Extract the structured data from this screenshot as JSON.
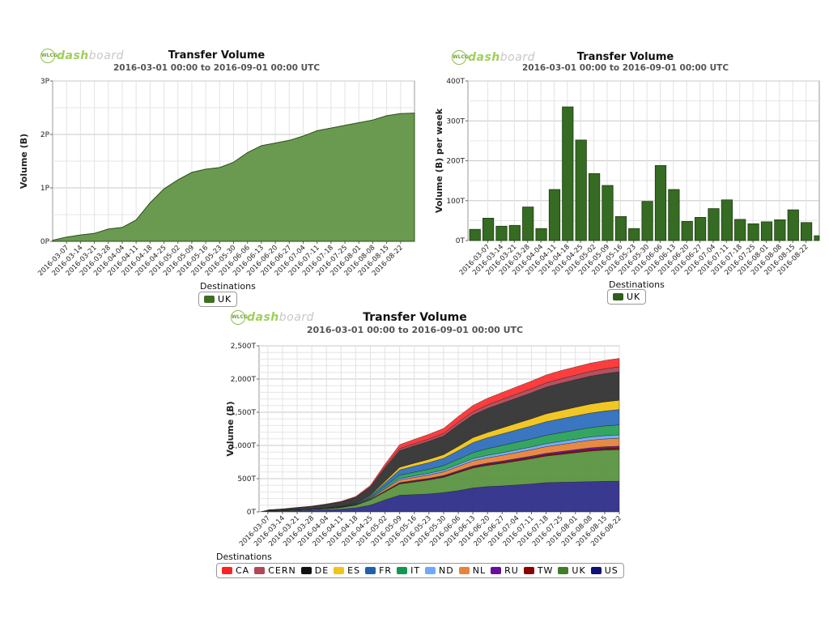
{
  "charts": [
    {
      "id": "top-left",
      "title": "Transfer Volume",
      "subtitle": "2016-03-01 00:00 to 2016-09-01 00:00 UTC",
      "logo_word": "dash",
      "logo_word2": "board",
      "legend_title": "Destinations",
      "legend": [
        {
          "name": "UK",
          "color": "#3f6e22"
        }
      ]
    },
    {
      "id": "top-right",
      "title": "Transfer Volume",
      "subtitle": "2016-03-01 00:00 to 2016-09-01 00:00 UTC",
      "logo_word": "dash",
      "logo_word2": "board",
      "legend_title": "Destinations",
      "legend": [
        {
          "name": "UK",
          "color": "#2f5e1c"
        }
      ]
    },
    {
      "id": "bottom",
      "title": "Transfer Volume",
      "subtitle": "2016-03-01 00:00 to 2016-09-01 00:00 UTC",
      "logo_word": "dash",
      "logo_word2": "board",
      "legend_title": "Destinations",
      "legend": [
        {
          "name": "CA",
          "color": "#ff2222"
        },
        {
          "name": "CERN",
          "color": "#b04858"
        },
        {
          "name": "DE",
          "color": "#111111"
        },
        {
          "name": "ES",
          "color": "#f0c419"
        },
        {
          "name": "FR",
          "color": "#1f5fae"
        },
        {
          "name": "IT",
          "color": "#109850"
        },
        {
          "name": "ND",
          "color": "#6fa8ff"
        },
        {
          "name": "NL",
          "color": "#e8843a"
        },
        {
          "name": "RU",
          "color": "#6a0d9e"
        },
        {
          "name": "TW",
          "color": "#8b0000"
        },
        {
          "name": "UK",
          "color": "#3f7f25"
        },
        {
          "name": "US",
          "color": "#0f1175"
        }
      ]
    }
  ],
  "chart_data": [
    {
      "type": "area",
      "title": "Transfer Volume",
      "subtitle": "2016-03-01 00:00 to 2016-09-01 00:00 UTC",
      "xlabel": "Destinations",
      "ylabel": "Volume (B)",
      "yticks": [
        "0P",
        "1P",
        "2P",
        "3P"
      ],
      "ylim": [
        0,
        3
      ],
      "yunit": "P",
      "xticks": [
        "2016-03-07",
        "2016-03-14",
        "2016-03-21",
        "2016-03-28",
        "2016-04-04",
        "2016-04-11",
        "2016-04-18",
        "2016-04-25",
        "2016-05-02",
        "2016-05-09",
        "2016-05-16",
        "2016-05-23",
        "2016-05-30",
        "2016-06-06",
        "2016-06-13",
        "2016-06-20",
        "2016-06-27",
        "2016-07-04",
        "2016-07-11",
        "2016-07-18",
        "2016-07-25",
        "2016-08-01",
        "2016-08-08",
        "2016-08-15",
        "2016-08-22"
      ],
      "x": [
        "2016-03-01",
        "2016-03-07",
        "2016-03-14",
        "2016-03-21",
        "2016-03-28",
        "2016-04-04",
        "2016-04-11",
        "2016-04-18",
        "2016-04-25",
        "2016-05-02",
        "2016-05-09",
        "2016-05-16",
        "2016-05-23",
        "2016-05-30",
        "2016-06-06",
        "2016-06-13",
        "2016-06-20",
        "2016-06-27",
        "2016-07-04",
        "2016-07-11",
        "2016-07-18",
        "2016-07-25",
        "2016-08-01",
        "2016-08-08",
        "2016-08-15",
        "2016-08-22",
        "2016-08-29"
      ],
      "series": [
        {
          "name": "UK",
          "color": "#3f6e22",
          "values": [
            0.02,
            0.08,
            0.12,
            0.15,
            0.23,
            0.26,
            0.4,
            0.72,
            0.98,
            1.15,
            1.29,
            1.35,
            1.38,
            1.48,
            1.66,
            1.79,
            1.84,
            1.89,
            1.97,
            2.07,
            2.12,
            2.17,
            2.22,
            2.27,
            2.35,
            2.39,
            2.4
          ]
        }
      ],
      "grid": true,
      "legend_position": "bottom"
    },
    {
      "type": "bar",
      "title": "Transfer Volume",
      "subtitle": "2016-03-01 00:00 to 2016-09-01 00:00 UTC",
      "xlabel": "Destinations",
      "ylabel": "Volume (B) per week",
      "yticks": [
        "0T",
        "100T",
        "200T",
        "300T",
        "400T"
      ],
      "ylim": [
        0,
        400
      ],
      "xticks": [
        "2016-03-07",
        "2016-03-14",
        "2016-03-21",
        "2016-03-28",
        "2016-04-04",
        "2016-04-11",
        "2016-04-18",
        "2016-04-25",
        "2016-05-02",
        "2016-05-09",
        "2016-05-16",
        "2016-05-23",
        "2016-05-30",
        "2016-06-06",
        "2016-06-13",
        "2016-06-20",
        "2016-06-27",
        "2016-07-04",
        "2016-07-11",
        "2016-07-18",
        "2016-07-25",
        "2016-08-01",
        "2016-08-08",
        "2016-08-15",
        "2016-08-22"
      ],
      "series": [
        {
          "name": "UK",
          "color": "#2f5e1c",
          "values": [
            28,
            56,
            36,
            38,
            84,
            30,
            128,
            335,
            252,
            168,
            138,
            60,
            30,
            98,
            188,
            128,
            48,
            58,
            80,
            102,
            53,
            42,
            47,
            52,
            77,
            45,
            12
          ]
        }
      ],
      "grid": true,
      "legend_position": "bottom"
    },
    {
      "type": "area",
      "stacked": true,
      "title": "Transfer Volume",
      "subtitle": "2016-03-01 00:00 to 2016-09-01 00:00 UTC",
      "xlabel": "Destinations",
      "ylabel": "Volume (B)",
      "yticks": [
        "0T",
        "500T",
        "1,000T",
        "1,500T",
        "2,000T",
        "2,500T"
      ],
      "ylim": [
        0,
        2500
      ],
      "xticks": [
        "2016-03-07",
        "2016-03-14",
        "2016-03-21",
        "2016-03-28",
        "2016-04-04",
        "2016-04-11",
        "2016-04-18",
        "2016-04-25",
        "2016-05-02",
        "2016-05-09",
        "2016-05-16",
        "2016-05-23",
        "2016-05-30",
        "2016-06-06",
        "2016-06-13",
        "2016-06-20",
        "2016-06-27",
        "2016-07-04",
        "2016-07-11",
        "2016-07-18",
        "2016-07-25",
        "2016-08-01",
        "2016-08-08",
        "2016-08-15",
        "2016-08-22"
      ],
      "series": [
        {
          "name": "US",
          "color": "#2e2e8a",
          "values": [
            10,
            15,
            20,
            25,
            30,
            40,
            60,
            100,
            180,
            250,
            260,
            270,
            290,
            320,
            360,
            380,
            390,
            405,
            420,
            440,
            445,
            450,
            455,
            460,
            462
          ]
        },
        {
          "name": "UK",
          "color": "#5a9440",
          "values": [
            5,
            8,
            10,
            14,
            18,
            25,
            40,
            80,
            120,
            170,
            190,
            210,
            230,
            270,
            300,
            320,
            340,
            360,
            380,
            400,
            420,
            440,
            460,
            470,
            475
          ]
        },
        {
          "name": "TW",
          "color": "#8b0000",
          "values": [
            0,
            0,
            0,
            0,
            0,
            2,
            3,
            5,
            8,
            10,
            12,
            13,
            14,
            15,
            17,
            18,
            19,
            20,
            21,
            22,
            23,
            24,
            25,
            26,
            27
          ]
        },
        {
          "name": "RU",
          "color": "#6a0d9e",
          "values": [
            0,
            0,
            0,
            0,
            0,
            1,
            2,
            4,
            7,
            10,
            11,
            12,
            13,
            14,
            15,
            16,
            17,
            18,
            19,
            20,
            21,
            22,
            23,
            24,
            25
          ]
        },
        {
          "name": "NL",
          "color": "#e8843a",
          "values": [
            0,
            0,
            0,
            0,
            1,
            2,
            4,
            10,
            25,
            40,
            45,
            50,
            55,
            65,
            75,
            80,
            85,
            90,
            95,
            100,
            105,
            110,
            115,
            118,
            120
          ]
        },
        {
          "name": "ND",
          "color": "#6fa8ff",
          "values": [
            0,
            0,
            0,
            0,
            1,
            2,
            4,
            8,
            15,
            22,
            25,
            27,
            29,
            32,
            35,
            37,
            39,
            41,
            43,
            45,
            47,
            48,
            49,
            50,
            51
          ]
        },
        {
          "name": "IT",
          "color": "#2aa15a",
          "values": [
            1,
            1,
            2,
            2,
            3,
            4,
            6,
            12,
            30,
            50,
            55,
            60,
            65,
            75,
            90,
            100,
            110,
            115,
            120,
            125,
            130,
            135,
            140,
            145,
            150
          ]
        },
        {
          "name": "FR",
          "color": "#2f6fbe",
          "values": [
            1,
            2,
            3,
            3,
            4,
            6,
            10,
            20,
            50,
            80,
            90,
            100,
            110,
            130,
            150,
            165,
            175,
            185,
            195,
            205,
            210,
            215,
            220,
            225,
            230
          ]
        },
        {
          "name": "ES",
          "color": "#f0c419",
          "values": [
            0,
            0,
            1,
            1,
            2,
            3,
            5,
            10,
            25,
            40,
            45,
            50,
            55,
            65,
            75,
            80,
            90,
            100,
            110,
            120,
            125,
            130,
            135,
            138,
            140
          ]
        },
        {
          "name": "DE",
          "color": "#333333",
          "values": [
            10,
            15,
            25,
            35,
            50,
            60,
            80,
            120,
            200,
            250,
            260,
            270,
            280,
            320,
            340,
            360,
            370,
            380,
            390,
            400,
            410,
            415,
            420,
            425,
            430
          ]
        },
        {
          "name": "CERN",
          "color": "#b04858",
          "values": [
            1,
            1,
            2,
            2,
            3,
            4,
            6,
            10,
            20,
            30,
            33,
            36,
            40,
            45,
            50,
            55,
            58,
            60,
            62,
            64,
            66,
            68,
            70,
            72,
            74
          ]
        },
        {
          "name": "CA",
          "color": "#ff3333",
          "values": [
            2,
            3,
            4,
            5,
            7,
            9,
            12,
            20,
            40,
            60,
            65,
            70,
            75,
            85,
            95,
            100,
            105,
            110,
            115,
            120,
            125,
            125,
            126,
            126,
            127
          ]
        }
      ],
      "grid": true,
      "legend_position": "bottom"
    }
  ]
}
